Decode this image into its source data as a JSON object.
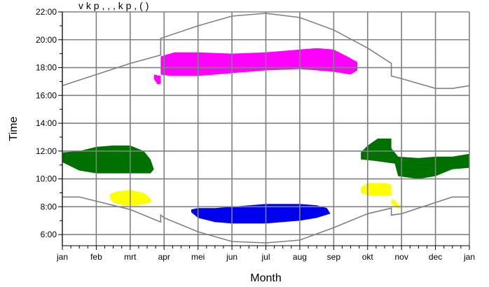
{
  "header": {
    "partial_text": "v           k p      ,   ,               ,   k p      ,   (    )"
  },
  "chart_data": {
    "type": "area",
    "xlabel": "Month",
    "ylabel": "Time",
    "x_ticks": [
      "jan",
      "feb",
      "mrt",
      "apr",
      "mei",
      "jun",
      "jul",
      "aug",
      "sep",
      "okt",
      "nov",
      "dec",
      "jan"
    ],
    "y_ticks": [
      "6:00",
      "8:00",
      "10:00",
      "12:00",
      "14:00",
      "16:00",
      "18:00",
      "20:00",
      "22:00"
    ],
    "xlim": [
      0,
      12
    ],
    "ylim": [
      5.2,
      22
    ],
    "grid": true,
    "colors": {
      "magenta": "#ff00ff",
      "green": "#007000",
      "yellow": "#ffff00",
      "blue": "#0000ee",
      "line": "#808080",
      "grid": "#808080"
    },
    "sunset": [
      [
        0,
        16.7
      ],
      [
        1,
        17.5
      ],
      [
        2,
        18.3
      ],
      [
        2.9,
        18.9
      ],
      [
        2.9,
        20.1
      ],
      [
        4,
        21
      ],
      [
        5,
        21.7
      ],
      [
        6,
        21.9
      ],
      [
        7,
        21.6
      ],
      [
        8,
        20.7
      ],
      [
        9,
        19.4
      ],
      [
        9.7,
        18.3
      ],
      [
        9.7,
        17.4
      ],
      [
        10,
        17.2
      ],
      [
        11,
        16.5
      ],
      [
        11.5,
        16.5
      ],
      [
        12,
        16.7
      ]
    ],
    "sunrise": [
      [
        0,
        8.7
      ],
      [
        0.5,
        8.7
      ],
      [
        1,
        8.4
      ],
      [
        2,
        7.8
      ],
      [
        2.9,
        6.9
      ],
      [
        2.9,
        7.4
      ],
      [
        3,
        7.2
      ],
      [
        4,
        6.2
      ],
      [
        5,
        5.5
      ],
      [
        6,
        5.4
      ],
      [
        7,
        5.6
      ],
      [
        8,
        6.5
      ],
      [
        9,
        7.5
      ],
      [
        9.7,
        7.9
      ],
      [
        9.7,
        7.4
      ],
      [
        10,
        7.5
      ],
      [
        11,
        8.3
      ],
      [
        11.5,
        8.7
      ],
      [
        12,
        8.7
      ]
    ],
    "regions": [
      {
        "name": "magenta",
        "points": [
          [
            2.9,
            17.5
          ],
          [
            3.2,
            17.4
          ],
          [
            4,
            17.4
          ],
          [
            5,
            17.6
          ],
          [
            6,
            17.8
          ],
          [
            7,
            17.9
          ],
          [
            8,
            17.7
          ],
          [
            8.5,
            17.5
          ],
          [
            8.7,
            17.8
          ],
          [
            8.7,
            18.4
          ],
          [
            8.4,
            18.8
          ],
          [
            8,
            19.3
          ],
          [
            7.5,
            19.4
          ],
          [
            7,
            19.3
          ],
          [
            6,
            19.1
          ],
          [
            5,
            19
          ],
          [
            4,
            19.1
          ],
          [
            3.3,
            19.1
          ],
          [
            2.9,
            18.8
          ]
        ]
      },
      {
        "name": "magenta-tail",
        "points": [
          [
            2.7,
            17.5
          ],
          [
            2.9,
            17.4
          ],
          [
            2.9,
            16.8
          ],
          [
            2.8,
            16.8
          ],
          [
            2.7,
            17.2
          ]
        ]
      },
      {
        "name": "green-left",
        "points": [
          [
            0,
            11.2
          ],
          [
            0.5,
            10.6
          ],
          [
            1,
            10.4
          ],
          [
            2,
            10.4
          ],
          [
            2.6,
            10.4
          ],
          [
            2.7,
            10.7
          ],
          [
            2.6,
            11.4
          ],
          [
            2.4,
            12
          ],
          [
            2,
            12.4
          ],
          [
            1.5,
            12.4
          ],
          [
            1,
            12.3
          ],
          [
            0.5,
            12
          ],
          [
            0,
            11.9
          ]
        ]
      },
      {
        "name": "green-right",
        "points": [
          [
            8.8,
            11.4
          ],
          [
            9.2,
            11.3
          ],
          [
            9.8,
            11.1
          ],
          [
            9.9,
            10.2
          ],
          [
            10.5,
            10
          ],
          [
            11,
            10.2
          ],
          [
            11.5,
            10.7
          ],
          [
            12,
            10.8
          ],
          [
            12,
            11.8
          ],
          [
            11.5,
            11.6
          ],
          [
            11,
            11.6
          ],
          [
            10.5,
            11.5
          ],
          [
            9.9,
            11.6
          ],
          [
            9.7,
            12.2
          ],
          [
            9.7,
            12.9
          ],
          [
            9.3,
            12.9
          ],
          [
            9,
            12.4
          ],
          [
            8.8,
            11.9
          ]
        ]
      },
      {
        "name": "yellow-left",
        "points": [
          [
            1.4,
            8.6
          ],
          [
            1.5,
            8.3
          ],
          [
            1.8,
            8.1
          ],
          [
            2.2,
            8.1
          ],
          [
            2.6,
            8.3
          ],
          [
            2.6,
            8.6
          ],
          [
            2.4,
            9
          ],
          [
            2,
            9.2
          ],
          [
            1.6,
            9.1
          ],
          [
            1.4,
            8.9
          ]
        ]
      },
      {
        "name": "yellow-right",
        "points": [
          [
            8.8,
            9
          ],
          [
            9,
            8.8
          ],
          [
            9.5,
            8.8
          ],
          [
            9.7,
            8.8
          ],
          [
            9.7,
            9.6
          ],
          [
            9.5,
            9.7
          ],
          [
            9,
            9.7
          ],
          [
            8.8,
            9.4
          ]
        ]
      },
      {
        "name": "yellow-right-small",
        "points": [
          [
            9.7,
            8.2
          ],
          [
            9.9,
            7.9
          ],
          [
            10,
            8
          ],
          [
            9.9,
            8.2
          ],
          [
            9.8,
            8.5
          ],
          [
            9.7,
            8.5
          ]
        ]
      },
      {
        "name": "blue",
        "points": [
          [
            3.8,
            7.6
          ],
          [
            4,
            7.2
          ],
          [
            4.5,
            6.9
          ],
          [
            5,
            6.8
          ],
          [
            6,
            6.8
          ],
          [
            7,
            7
          ],
          [
            7.5,
            7.2
          ],
          [
            7.9,
            7.5
          ],
          [
            7.8,
            7.9
          ],
          [
            7.5,
            8.1
          ],
          [
            7,
            8.2
          ],
          [
            6,
            8.2
          ],
          [
            5,
            8
          ],
          [
            4.5,
            7.9
          ],
          [
            4,
            7.9
          ],
          [
            3.8,
            7.8
          ]
        ]
      }
    ]
  }
}
